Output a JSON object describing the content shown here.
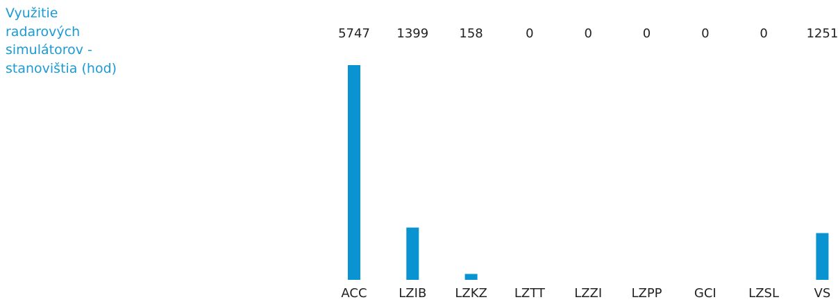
{
  "chart_data": {
    "type": "bar",
    "title": "Využitie radarových simulátorov - stanovištia (hod)",
    "categories": [
      "ACC",
      "LZIB",
      "LZKZ",
      "LZTT",
      "LZZI",
      "LZPP",
      "GCI",
      "LZSL",
      "VS"
    ],
    "values": [
      5747,
      1399,
      158,
      0,
      0,
      0,
      0,
      0,
      1251
    ],
    "color": "#0a93d1"
  }
}
